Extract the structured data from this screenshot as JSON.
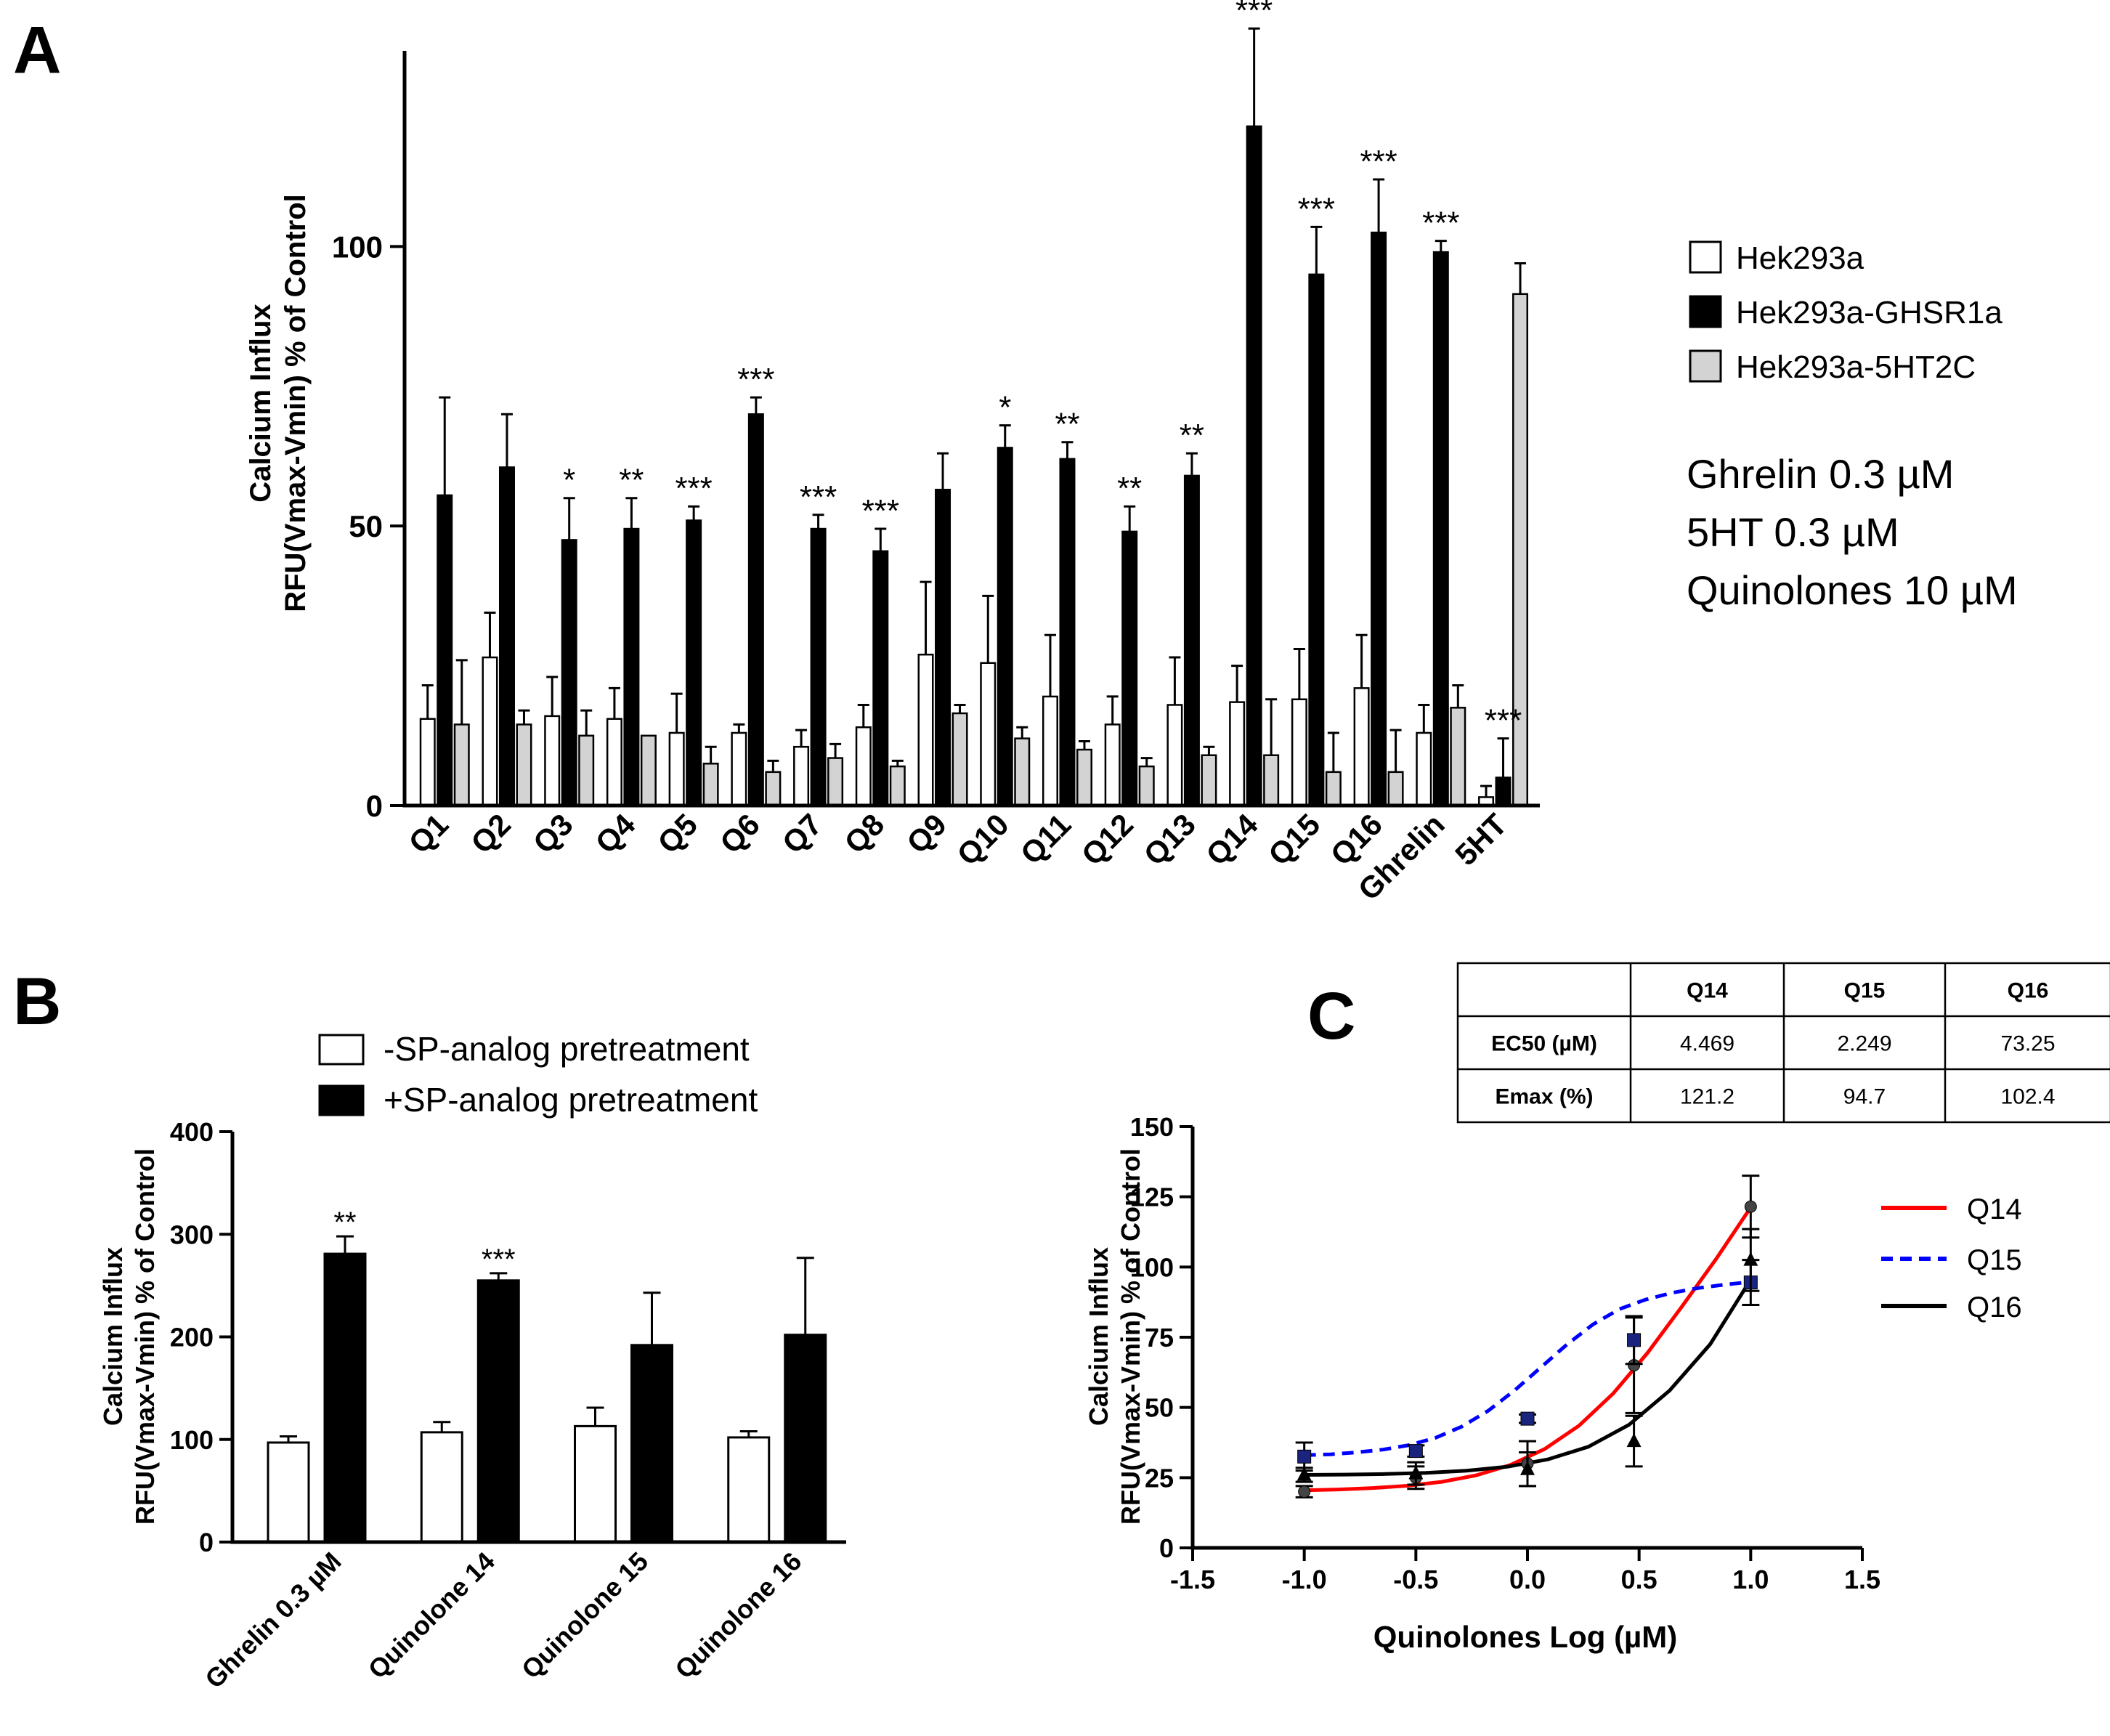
{
  "panels": {
    "a": {
      "letter": "A"
    },
    "b": {
      "letter": "B"
    },
    "c": {
      "letter": "C"
    }
  },
  "colors": {
    "hek293a": "#ffffff",
    "ghsr1a": "#000000",
    "ht2c": "#d3d3d3",
    "q14": "#ff0000",
    "q15": "#0000ff",
    "q16": "#000000"
  },
  "annotations": {
    "conc_lines": [
      "Ghrelin 0.3 µM",
      "5HT 0.3 µM",
      "Quinolones 10 µM"
    ]
  },
  "chart_data": [
    {
      "id": "A",
      "type": "bar",
      "title": "",
      "ylabel_lines": [
        "Calcium Influx",
        "RFU(Vmax-Vmin) % of Control"
      ],
      "ylim": [
        0,
        135
      ],
      "yticks": [
        0,
        50,
        100
      ],
      "categories": [
        "Q1",
        "Q2",
        "Q3",
        "Q4",
        "Q5",
        "Q6",
        "Q7",
        "Q8",
        "Q9",
        "Q10",
        "Q11",
        "Q12",
        "Q13",
        "Q14",
        "Q15",
        "Q16",
        "Ghrelin",
        "5HT"
      ],
      "series": [
        {
          "name": "Hek293a",
          "values": [
            15.5,
            26.5,
            16,
            15.5,
            13,
            13,
            10.5,
            14,
            27,
            25.5,
            19.5,
            14.5,
            18,
            18.5,
            19,
            21,
            13,
            1.5
          ],
          "errors": [
            6,
            8,
            7,
            5.5,
            7,
            1.5,
            3,
            4,
            13,
            12,
            11,
            5,
            8.5,
            6.5,
            9,
            9.5,
            5,
            2
          ]
        },
        {
          "name": "Hek293a-GHSR1a",
          "values": [
            55.5,
            60.5,
            47.5,
            49.5,
            51,
            70,
            49.5,
            45.5,
            56.5,
            64,
            62,
            49,
            59,
            121.5,
            95,
            102.5,
            99,
            5
          ],
          "errors": [
            17.5,
            9.5,
            7.5,
            5.5,
            2.5,
            3,
            2.5,
            4,
            6.5,
            4,
            3,
            4.5,
            4,
            17.5,
            8.5,
            9.5,
            2,
            7
          ]
        },
        {
          "name": "Hek293a-5HT2C",
          "values": [
            14.5,
            14.5,
            12.5,
            12.5,
            7.5,
            6,
            8.5,
            7,
            16.5,
            12,
            10,
            7,
            9,
            9,
            6,
            6,
            17.5,
            91.5
          ],
          "errors": [
            11.5,
            2.5,
            4.5,
            0,
            3,
            2,
            2.5,
            1,
            1.5,
            2,
            1.5,
            1.5,
            1.5,
            10,
            7,
            7.5,
            4,
            5.5
          ]
        }
      ],
      "significance": [
        "",
        "",
        "*",
        "**",
        "***",
        "***",
        "***",
        "***",
        "",
        "*",
        "**",
        "**",
        "**",
        "***",
        "***",
        "***",
        "***",
        "***"
      ]
    },
    {
      "id": "B",
      "type": "bar",
      "title": "",
      "ylabel_lines": [
        "Calcium Influx",
        "RFU(Vmax-Vmin) % of Control"
      ],
      "ylim": [
        0,
        400
      ],
      "yticks": [
        0,
        100,
        200,
        300,
        400
      ],
      "categories": [
        "Ghrelin 0.3 µM",
        "Quinolone 14",
        "Quinolone 15",
        "Quinolone 16"
      ],
      "series": [
        {
          "name": "-SP-analog pretreatment",
          "values": [
            97,
            107,
            113,
            102
          ],
          "errors": [
            6,
            10,
            18,
            6
          ]
        },
        {
          "name": "+SP-analog pretreatment",
          "values": [
            281,
            255,
            192,
            202
          ],
          "errors": [
            17,
            7,
            51,
            75
          ]
        }
      ],
      "significance": [
        "**",
        "***",
        "",
        ""
      ]
    },
    {
      "id": "C",
      "type": "line",
      "title": "",
      "xlabel": "Quinolones Log (µM)",
      "ylabel_lines": [
        "Calcium Influx",
        "RFU(Vmax-Vmin) % of Control"
      ],
      "xlim": [
        -1.5,
        1.5
      ],
      "ylim": [
        0,
        150
      ],
      "xticks": [
        -1.5,
        -1.0,
        -0.5,
        0.0,
        0.5,
        1.0,
        1.5
      ],
      "xtick_labels": [
        "-1.5",
        "-1.0",
        "-0.5",
        "0.0",
        "0.5",
        "1.0",
        "1.5"
      ],
      "yticks": [
        0,
        25,
        50,
        75,
        100,
        125,
        150
      ],
      "x": [
        -1.0,
        -0.5,
        0.0,
        0.477,
        1.0
      ],
      "series": [
        {
          "name": "Q14",
          "style": "solid",
          "marker": "circle",
          "values": [
            20,
            25,
            30,
            65,
            121.5
          ],
          "errors": [
            2,
            4,
            8,
            17,
            11
          ],
          "curve": [
            20.5,
            20.8,
            21.3,
            22.1,
            23.5,
            25.8,
            29.5,
            35.2,
            43.5,
            55,
            69.5,
            86,
            103,
            121.2
          ]
        },
        {
          "name": "Q15",
          "style": "dashed",
          "marker": "square",
          "values": [
            32.5,
            34.5,
            46,
            74,
            94.5
          ],
          "errors": [
            5,
            2,
            1.5,
            8.5,
            8
          ],
          "curve": [
            33,
            33.3,
            34,
            35,
            36.6,
            39.2,
            43.2,
            48.8,
            56,
            64.2,
            72.4,
            79.6,
            85,
            88.4,
            90.8,
            92.5,
            93.7,
            94.7
          ]
        },
        {
          "name": "Q16",
          "style": "solid",
          "marker": "triangle",
          "values": [
            26,
            26.5,
            28,
            38,
            102.5
          ],
          "errors": [
            2.5,
            4,
            6,
            9,
            11
          ],
          "curve": [
            26,
            26.1,
            26.3,
            26.7,
            27.5,
            28.9,
            31.5,
            36,
            43.8,
            56,
            72.5,
            95.5
          ]
        }
      ],
      "table": {
        "headers": [
          "",
          "Q14",
          "Q15",
          "Q16"
        ],
        "rows": [
          [
            "EC50 (µM)",
            "4.469",
            "2.249",
            "73.25"
          ],
          [
            "Emax (%)",
            "121.2",
            "94.7",
            "102.4"
          ]
        ]
      }
    }
  ]
}
